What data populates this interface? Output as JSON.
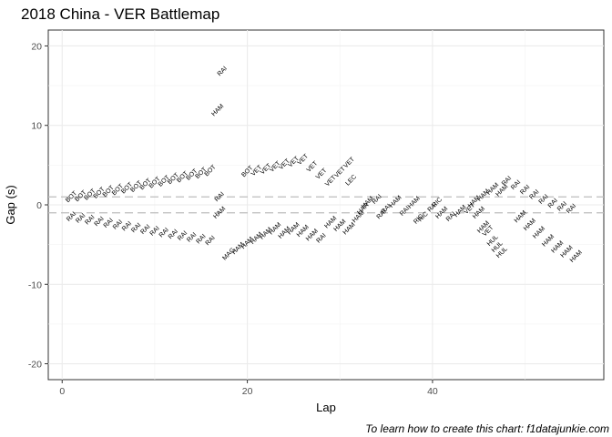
{
  "chart_data": {
    "type": "scatter",
    "title": "2018 China - VER Battlemap",
    "xlabel": "Lap",
    "ylabel": "Gap (s)",
    "caption": "To learn how to create this chart: f1datajunkie.com",
    "xlim": [
      -1.5,
      58.5
    ],
    "ylim": [
      -22,
      22
    ],
    "x_ticks": [
      0,
      20,
      40
    ],
    "x_tick_labels": [
      "0",
      "20",
      "40"
    ],
    "y_ticks": [
      -20,
      -10,
      0,
      10,
      20
    ],
    "y_tick_labels": [
      "-20",
      "-10",
      "0",
      "10",
      "20"
    ],
    "reference_lines": [
      1,
      -1
    ],
    "grid": true,
    "colors": {
      "default": "#000000",
      "LEC": "#1fa3d9",
      "HAR": "#f07b72",
      "refline": "#bdbdbd"
    },
    "points": [
      {
        "x": 1,
        "y": 1.0,
        "label": "BOT"
      },
      {
        "x": 2,
        "y": 1.1,
        "label": "BOT"
      },
      {
        "x": 3,
        "y": 1.3,
        "label": "BOT"
      },
      {
        "x": 4,
        "y": 1.5,
        "label": "BOT"
      },
      {
        "x": 5,
        "y": 1.7,
        "label": "BOT"
      },
      {
        "x": 6,
        "y": 1.9,
        "label": "BOT"
      },
      {
        "x": 7,
        "y": 2.1,
        "label": "BOT"
      },
      {
        "x": 8,
        "y": 2.3,
        "label": "BOT"
      },
      {
        "x": 9,
        "y": 2.6,
        "label": "BOT"
      },
      {
        "x": 10,
        "y": 2.8,
        "label": "BOT"
      },
      {
        "x": 11,
        "y": 3.0,
        "label": "BOT"
      },
      {
        "x": 12,
        "y": 3.3,
        "label": "BOT"
      },
      {
        "x": 13,
        "y": 3.5,
        "label": "BOT"
      },
      {
        "x": 14,
        "y": 3.8,
        "label": "BOT"
      },
      {
        "x": 15,
        "y": 4.0,
        "label": "BOT"
      },
      {
        "x": 16,
        "y": 4.3,
        "label": "BOT"
      },
      {
        "x": 20,
        "y": 4.2,
        "label": "BOT"
      },
      {
        "x": 21,
        "y": 4.3,
        "label": "VET"
      },
      {
        "x": 22,
        "y": 4.5,
        "label": "VET"
      },
      {
        "x": 23,
        "y": 4.8,
        "label": "VET"
      },
      {
        "x": 24,
        "y": 5.1,
        "label": "VET"
      },
      {
        "x": 25,
        "y": 5.4,
        "label": "VET"
      },
      {
        "x": 26,
        "y": 5.7,
        "label": "VET"
      },
      {
        "x": 27,
        "y": 4.8,
        "label": "VET"
      },
      {
        "x": 28,
        "y": 3.9,
        "label": "VET"
      },
      {
        "x": 29,
        "y": 3.0,
        "label": "VET"
      },
      {
        "x": 30,
        "y": 4.1,
        "label": "VET"
      },
      {
        "x": 31,
        "y": 5.3,
        "label": "VET"
      },
      {
        "x": 31.2,
        "y": 3.1,
        "label": "LEC"
      },
      {
        "x": 17.3,
        "y": 16.8,
        "label": "RAI"
      },
      {
        "x": 16.8,
        "y": 11.9,
        "label": "HAM"
      },
      {
        "x": 1,
        "y": -1.5,
        "label": "RAI"
      },
      {
        "x": 2,
        "y": -1.7,
        "label": "RAI"
      },
      {
        "x": 3,
        "y": -1.9,
        "label": "RAI"
      },
      {
        "x": 4,
        "y": -2.1,
        "label": "RAI"
      },
      {
        "x": 5,
        "y": -2.3,
        "label": "RAI"
      },
      {
        "x": 6,
        "y": -2.5,
        "label": "RAI"
      },
      {
        "x": 7,
        "y": -2.7,
        "label": "RAI"
      },
      {
        "x": 8,
        "y": -2.9,
        "label": "RAI"
      },
      {
        "x": 9,
        "y": -3.1,
        "label": "RAI"
      },
      {
        "x": 10,
        "y": -3.3,
        "label": "RAI"
      },
      {
        "x": 11,
        "y": -3.5,
        "label": "RAI"
      },
      {
        "x": 12,
        "y": -3.7,
        "label": "RAI"
      },
      {
        "x": 13,
        "y": -3.9,
        "label": "RAI"
      },
      {
        "x": 14,
        "y": -4.1,
        "label": "RAI"
      },
      {
        "x": 15,
        "y": -4.3,
        "label": "RAI"
      },
      {
        "x": 16,
        "y": -4.5,
        "label": "RAI"
      },
      {
        "x": 17,
        "y": 1.0,
        "label": "RAI"
      },
      {
        "x": 17,
        "y": -1.0,
        "label": "HAM"
      },
      {
        "x": 18,
        "y": -6.2,
        "label": "MAG"
      },
      {
        "x": 19,
        "y": -5.5,
        "label": "HAM"
      },
      {
        "x": 20,
        "y": -4.8,
        "label": "HAM"
      },
      {
        "x": 21,
        "y": -4.2,
        "label": "HAM"
      },
      {
        "x": 22,
        "y": -3.6,
        "label": "HAM"
      },
      {
        "x": 23,
        "y": -3.0,
        "label": "HAM"
      },
      {
        "x": 24,
        "y": -3.5,
        "label": "HAM"
      },
      {
        "x": 25,
        "y": -3.0,
        "label": "HAM"
      },
      {
        "x": 26,
        "y": -3.3,
        "label": "HAM"
      },
      {
        "x": 27,
        "y": -3.8,
        "label": "HAM"
      },
      {
        "x": 28,
        "y": -4.2,
        "label": "RAI"
      },
      {
        "x": 29,
        "y": -2.2,
        "label": "HAM"
      },
      {
        "x": 30,
        "y": -2.6,
        "label": "HAM"
      },
      {
        "x": 31,
        "y": -3.0,
        "label": "HAM"
      },
      {
        "x": 32,
        "y": -1.5,
        "label": "HAM"
      },
      {
        "x": 32.5,
        "y": -0.5,
        "label": "HAR"
      },
      {
        "x": 33,
        "y": 0.3,
        "label": "HAM"
      },
      {
        "x": 34,
        "y": 0.7,
        "label": "RAI"
      },
      {
        "x": 34.5,
        "y": -1.2,
        "label": "RAI"
      },
      {
        "x": 35,
        "y": -0.5,
        "label": "RAI"
      },
      {
        "x": 36,
        "y": 0.4,
        "label": "HAM"
      },
      {
        "x": 37,
        "y": -0.8,
        "label": "RAI"
      },
      {
        "x": 38,
        "y": 0.3,
        "label": "HAM"
      },
      {
        "x": 38.5,
        "y": -1.8,
        "label": "RIC"
      },
      {
        "x": 39,
        "y": -1.5,
        "label": "RIC"
      },
      {
        "x": 40,
        "y": -0.3,
        "label": "RAI"
      },
      {
        "x": 40.5,
        "y": 0.3,
        "label": "RIC"
      },
      {
        "x": 41,
        "y": -1.0,
        "label": "HAM"
      },
      {
        "x": 42,
        "y": -1.5,
        "label": "RAI"
      },
      {
        "x": 43,
        "y": -0.8,
        "label": "HAM"
      },
      {
        "x": 44,
        "y": -0.5,
        "label": "VET"
      },
      {
        "x": 45,
        "y": -1.0,
        "label": "HAM"
      },
      {
        "x": 45.5,
        "y": -2.8,
        "label": "HAM"
      },
      {
        "x": 46,
        "y": -3.3,
        "label": "VET"
      },
      {
        "x": 46.5,
        "y": -4.5,
        "label": "HUL"
      },
      {
        "x": 47,
        "y": -5.3,
        "label": "HUL"
      },
      {
        "x": 47.5,
        "y": -6.0,
        "label": "HUL"
      },
      {
        "x": 44.5,
        "y": 0.4,
        "label": "HAM"
      },
      {
        "x": 45.5,
        "y": 1.2,
        "label": "HAM"
      },
      {
        "x": 46.5,
        "y": 2.0,
        "label": "HAM"
      },
      {
        "x": 47.5,
        "y": 1.8,
        "label": "HAM"
      },
      {
        "x": 48,
        "y": 3.0,
        "label": "RAI"
      },
      {
        "x": 49,
        "y": 2.5,
        "label": "RAI"
      },
      {
        "x": 50,
        "y": 1.9,
        "label": "RAI"
      },
      {
        "x": 51,
        "y": 1.3,
        "label": "RAI"
      },
      {
        "x": 52,
        "y": 0.7,
        "label": "RAI"
      },
      {
        "x": 53,
        "y": 0.2,
        "label": "RAI"
      },
      {
        "x": 54,
        "y": -0.2,
        "label": "RAI"
      },
      {
        "x": 55,
        "y": -0.5,
        "label": "RAI"
      },
      {
        "x": 49.5,
        "y": -1.5,
        "label": "HAM"
      },
      {
        "x": 50.5,
        "y": -2.5,
        "label": "HAM"
      },
      {
        "x": 51.5,
        "y": -3.5,
        "label": "HAM"
      },
      {
        "x": 52.5,
        "y": -4.5,
        "label": "HAM"
      },
      {
        "x": 53.5,
        "y": -5.3,
        "label": "HAM"
      },
      {
        "x": 54.5,
        "y": -5.9,
        "label": "HAM"
      },
      {
        "x": 55.5,
        "y": -6.5,
        "label": "HAM"
      }
    ]
  }
}
